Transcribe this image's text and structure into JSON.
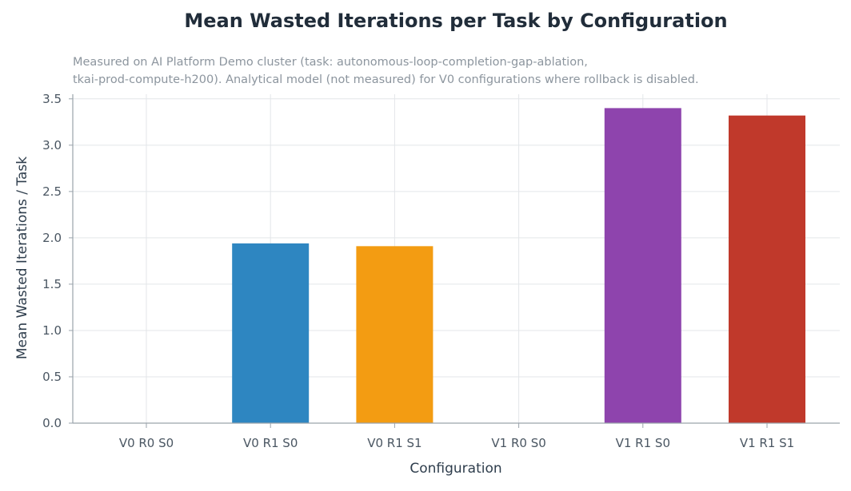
{
  "chart_data": {
    "type": "bar",
    "title": "Mean Wasted Iterations per Task by Configuration",
    "subtitle_lines": [
      "Measured on AI Platform Demo cluster (task: autonomous-loop-completion-gap-ablation,",
      "tkai-prod-compute-h200). Analytical model (not measured) for V0 configurations where rollback is disabled."
    ],
    "xlabel": "Configuration",
    "ylabel": "Mean Wasted Iterations / Task",
    "categories": [
      "V0 R0 S0",
      "V0 R1 S0",
      "V0 R1 S1",
      "V1 R0 S0",
      "V1 R1 S0",
      "V1 R1 S1"
    ],
    "values": [
      0,
      1.94,
      1.91,
      0,
      3.4,
      3.32
    ],
    "colors": [
      "#2e86c1",
      "#2e86c1",
      "#f39c12",
      "#8e44ad",
      "#8e44ad",
      "#c0392b"
    ],
    "ylim": [
      0,
      3.55
    ],
    "yticks": [
      "0.0",
      "0.5",
      "1.0",
      "1.5",
      "2.0",
      "2.5",
      "3.0",
      "3.5"
    ],
    "grid": true
  }
}
